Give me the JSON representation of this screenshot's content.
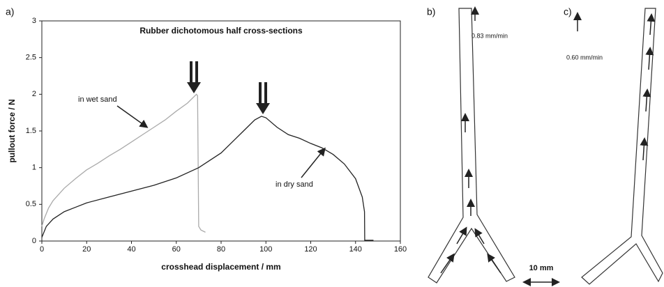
{
  "chart_data": {
    "type": "line",
    "panel_label": "a)",
    "title": "Rubber dichotomous half cross-sections",
    "x_label": "crosshead displacement / mm",
    "y_label": "pullout force / N",
    "xlim": [
      0,
      160
    ],
    "xticks": [
      0,
      20,
      40,
      60,
      80,
      100,
      120,
      140,
      160
    ],
    "ylim": [
      0,
      3
    ],
    "yticks": [
      0,
      0.5,
      1,
      1.5,
      2,
      2.5,
      3
    ],
    "annotations": [
      "in wet sand",
      "in dry sand"
    ],
    "series": [
      {
        "name": "in wet sand",
        "color": "#aaaaaa",
        "x": [
          0,
          1,
          3,
          5,
          10,
          15,
          20,
          25,
          30,
          35,
          40,
          45,
          50,
          55,
          60,
          65,
          69,
          69.5,
          70,
          71,
          73
        ],
        "values": [
          0.2,
          0.3,
          0.45,
          0.55,
          0.72,
          0.85,
          0.97,
          1.06,
          1.16,
          1.25,
          1.35,
          1.45,
          1.55,
          1.65,
          1.77,
          1.88,
          2.0,
          1.98,
          0.2,
          0.15,
          0.12
        ]
      },
      {
        "name": "in dry sand",
        "color": "#222222",
        "x": [
          0,
          2,
          5,
          10,
          15,
          20,
          30,
          40,
          50,
          60,
          70,
          80,
          85,
          90,
          95,
          98,
          100,
          105,
          110,
          115,
          120,
          125,
          130,
          135,
          140,
          143,
          144,
          144.1,
          148
        ],
        "values": [
          0.05,
          0.2,
          0.3,
          0.4,
          0.46,
          0.52,
          0.6,
          0.68,
          0.76,
          0.86,
          1.0,
          1.2,
          1.35,
          1.5,
          1.65,
          1.7,
          1.68,
          1.55,
          1.45,
          1.4,
          1.33,
          1.27,
          1.18,
          1.05,
          0.85,
          0.6,
          0.4,
          0.01,
          0.01
        ]
      }
    ]
  },
  "panels": [
    {
      "label": "b)",
      "speed": "0.83 mm/min",
      "scale": "10 mm"
    },
    {
      "label": "c)",
      "speed": "0.60 mm/min"
    }
  ]
}
